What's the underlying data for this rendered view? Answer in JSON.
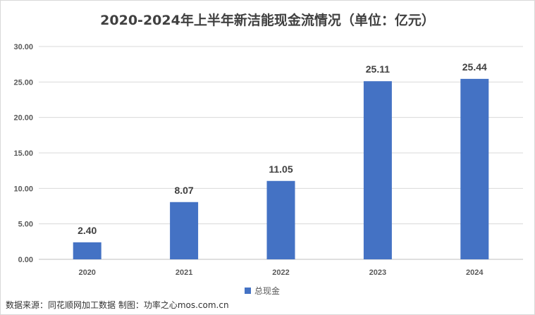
{
  "chart_data": {
    "type": "bar",
    "title": "2020-2024年上半年新洁能现金流情况（单位：亿元）",
    "categories": [
      "2020",
      "2021",
      "2022",
      "2023",
      "2024"
    ],
    "series": [
      {
        "name": "总现金",
        "values": [
          2.4,
          8.07,
          11.05,
          25.11,
          25.44
        ]
      }
    ],
    "data_labels": [
      "2.40",
      "8.07",
      "11.05",
      "25.11",
      "25.44"
    ],
    "y_ticks": [
      "0.00",
      "5.00",
      "10.00",
      "15.00",
      "20.00",
      "25.00",
      "30.00"
    ],
    "ylim": [
      0,
      30
    ],
    "grid": true,
    "legend_position": "bottom",
    "bar_color": "#4472c4"
  },
  "legend_label": "总现金",
  "source_note": "数据来源：同花顺网加工数据 制图：功率之心mos.com.cn"
}
